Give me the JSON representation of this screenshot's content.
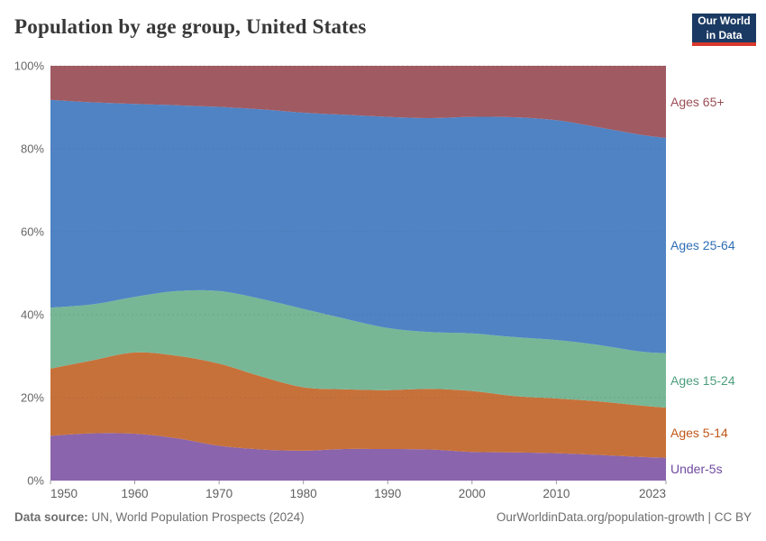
{
  "header": {
    "title": "Population by age group, United States",
    "logo": {
      "line1": "Our World",
      "line2": "in Data"
    }
  },
  "footer": {
    "source_label": "Data source:",
    "source_text": "UN, World Population Prospects (2024)",
    "credit": "OurWorldinData.org/population-growth | CC BY"
  },
  "chart_data": {
    "type": "area",
    "stacked": true,
    "normalized_percent": true,
    "title": "Population by age group, United States",
    "xlabel": "",
    "ylabel": "",
    "xlim": [
      1950,
      2023
    ],
    "ylim": [
      0,
      100
    ],
    "grid": "dashed-horizontal",
    "legend_position": "right-of-plot",
    "x": [
      1950,
      1955,
      1960,
      1965,
      1970,
      1975,
      1980,
      1985,
      1990,
      1995,
      2000,
      2005,
      2010,
      2015,
      2020,
      2023
    ],
    "x_tick_labels": [
      "1950",
      "1960",
      "1970",
      "1980",
      "1990",
      "2000",
      "2010",
      "2023"
    ],
    "x_tick_years": [
      1950,
      1960,
      1970,
      1980,
      1990,
      2000,
      2010,
      2023
    ],
    "y_tick_labels": [
      "0%",
      "20%",
      "40%",
      "60%",
      "80%",
      "100%"
    ],
    "y_tick_values": [
      0,
      20,
      40,
      60,
      80,
      100
    ],
    "series": [
      {
        "name": "Under-5s",
        "fill_color": "#8a64ac",
        "label_color": "#6f4b9e",
        "values": [
          10.8,
          11.4,
          11.3,
          10.2,
          8.4,
          7.5,
          7.2,
          7.6,
          7.6,
          7.5,
          6.9,
          6.8,
          6.6,
          6.2,
          5.7,
          5.5
        ]
      },
      {
        "name": "Ages 5-14",
        "fill_color": "#c7713a",
        "label_color": "#c05717",
        "values": [
          16.2,
          17.6,
          19.6,
          19.9,
          19.8,
          17.6,
          15.3,
          14.4,
          14.2,
          14.6,
          14.7,
          13.6,
          13.2,
          12.9,
          12.4,
          12.1
        ]
      },
      {
        "name": "Ages 15-24",
        "fill_color": "#77b796",
        "label_color": "#4c9d7c",
        "values": [
          14.7,
          13.5,
          13.4,
          15.6,
          17.5,
          18.7,
          18.9,
          17.0,
          15.0,
          13.7,
          13.9,
          14.2,
          14.1,
          13.6,
          13.0,
          13.1
        ]
      },
      {
        "name": "Ages 25-64",
        "fill_color": "#4f83c4",
        "label_color": "#2e6eb5",
        "values": [
          50.1,
          48.7,
          46.5,
          44.8,
          44.4,
          45.7,
          47.3,
          49.2,
          50.9,
          51.6,
          52.2,
          53.0,
          53.0,
          52.5,
          52.3,
          51.9
        ]
      },
      {
        "name": "Ages 65+",
        "fill_color": "#a05a62",
        "label_color": "#9a4e55",
        "values": [
          8.2,
          8.8,
          9.2,
          9.5,
          9.9,
          10.5,
          11.3,
          11.8,
          12.3,
          12.6,
          12.3,
          12.4,
          13.1,
          14.8,
          16.6,
          17.4
        ]
      }
    ]
  }
}
